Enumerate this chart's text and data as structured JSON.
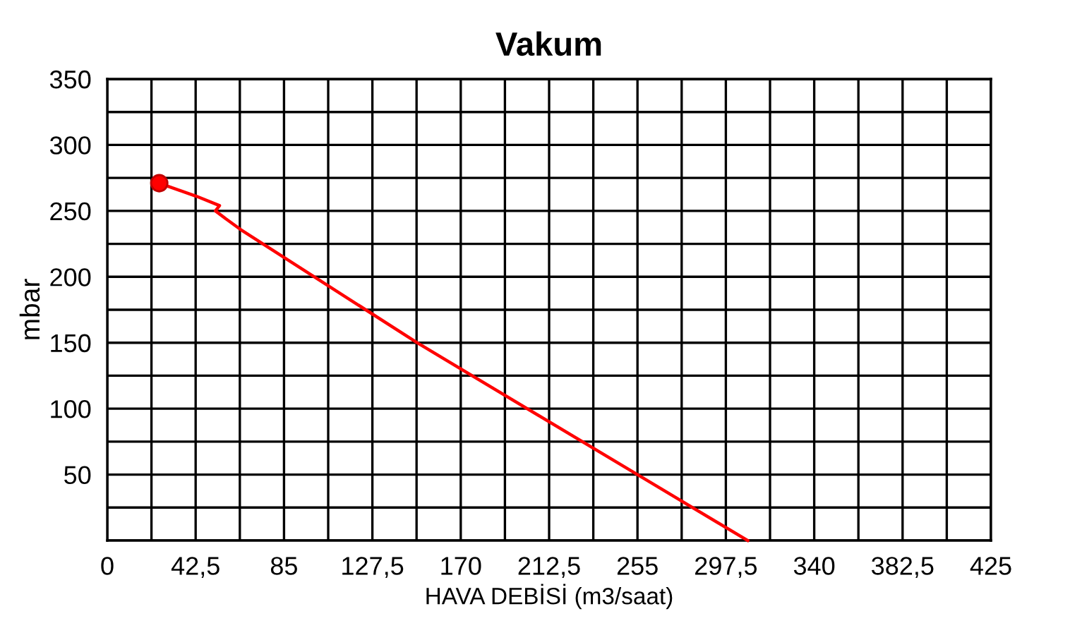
{
  "chart_data": {
    "type": "line",
    "title": "Vakum",
    "xlabel": "HAVA DEBİSİ (m3/saat)",
    "ylabel": "mbar",
    "xlim": [
      0,
      425
    ],
    "ylim": [
      0,
      350
    ],
    "xticks": [
      0,
      {
        "value": 21.25,
        "label": null
      },
      {
        "value": 42.5,
        "label": "42,5"
      },
      {
        "value": 63.75,
        "label": null
      },
      85,
      {
        "value": 106.25,
        "label": null
      },
      {
        "value": 127.5,
        "label": "127,5"
      },
      {
        "value": 148.75,
        "label": null
      },
      170,
      {
        "value": 191.25,
        "label": null
      },
      {
        "value": 212.5,
        "label": "212,5"
      },
      {
        "value": 233.75,
        "label": null
      },
      255,
      {
        "value": 276.25,
        "label": null
      },
      {
        "value": 297.5,
        "label": "297,5"
      },
      {
        "value": 318.75,
        "label": null
      },
      340,
      {
        "value": 361.25,
        "label": null
      },
      {
        "value": 382.5,
        "label": "382,5"
      },
      {
        "value": 403.75,
        "label": null
      },
      425
    ],
    "yticks": [
      {
        "value": 0,
        "label": null
      },
      {
        "value": 25,
        "label": null
      },
      50,
      {
        "value": 75,
        "label": null
      },
      100,
      {
        "value": 125,
        "label": null
      },
      150,
      {
        "value": 175,
        "label": null
      },
      200,
      {
        "value": 225,
        "label": null
      },
      250,
      {
        "value": 275,
        "label": null
      },
      300,
      {
        "value": 325,
        "label": null
      },
      350
    ],
    "grid": true,
    "legend": false,
    "series": [
      {
        "color": "#ff0000",
        "marker": "none",
        "x": [
          25,
          43,
          54,
          52,
          57,
          64,
          149,
          256,
          308
        ],
        "values": [
          271,
          261,
          254,
          250,
          244,
          236,
          150,
          49,
          0
        ]
      },
      {
        "type": "scatter",
        "color": "#ff0000",
        "marker": "circle",
        "x": [
          25
        ],
        "values": [
          271
        ]
      }
    ]
  }
}
